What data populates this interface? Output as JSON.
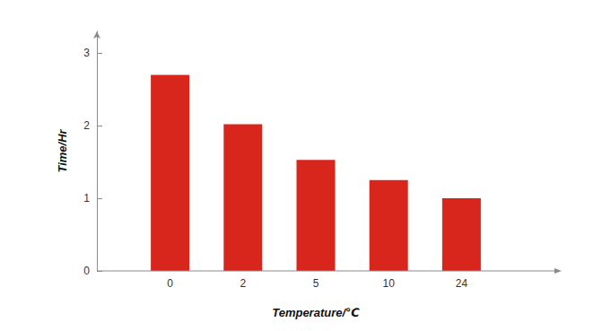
{
  "chart_data": {
    "type": "bar",
    "x_label": "Temperature/℃",
    "y_label": "Time/Hr",
    "categories": [
      "0",
      "2",
      "5",
      "10",
      "24"
    ],
    "values": [
      2.7,
      2.02,
      1.53,
      1.25,
      1.0
    ],
    "color": "#d9261c",
    "ylim": [
      0,
      3.3
    ],
    "yticks": [
      0,
      1,
      2,
      3
    ],
    "grid": false
  }
}
